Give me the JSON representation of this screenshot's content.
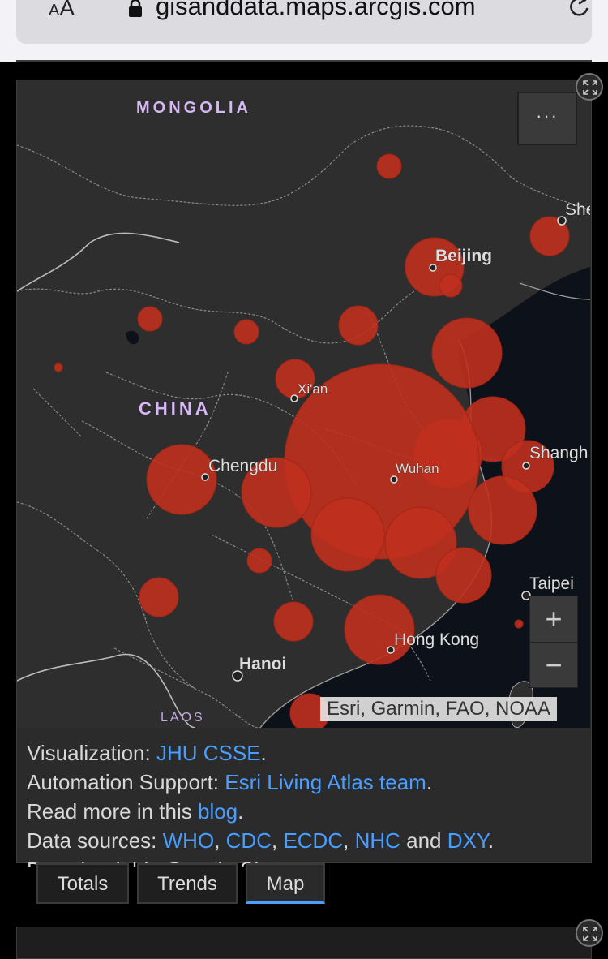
{
  "browser": {
    "aa_label": "AA",
    "url": "gisanddata.maps.arcgis.com"
  },
  "map": {
    "country_labels": [
      "MONGOLIA",
      "CHINA",
      "LAOS"
    ],
    "city_labels": [
      "Beijing",
      "Xi'an",
      "Chengdu",
      "Wuhan",
      "Shangh",
      "Taipei",
      "Hong Kong",
      "Hanoi",
      "She"
    ],
    "more_label": "···",
    "zoom_in": "+",
    "zoom_out": "−",
    "attribution": "Esri, Garmin, FAO, NOAA",
    "bubble_color": "#c0301e",
    "land_color": "#2e2e2e",
    "water_color": "#0d1119"
  },
  "info": {
    "viz_prefix": "Visualization: ",
    "viz_link": "JHU CSSE",
    "viz_suffix": ".",
    "auto_prefix": "Automation Support: ",
    "auto_link": "Esri Living Atlas team",
    "auto_suffix": ".",
    "read_prefix": "Read more in this ",
    "read_link": "blog",
    "read_suffix": ".",
    "sources_prefix": "Data sources: ",
    "src_who": "WHO",
    "src_cdc": "CDC",
    "src_ecdc": "ECDC",
    "src_nhc": "NHC",
    "src_and": " and ",
    "src_dxy": "DXY",
    "src_end": ".",
    "cut_line": "Downloadable Google Sheets"
  },
  "tabs": [
    {
      "label": "Totals"
    },
    {
      "label": "Trends"
    },
    {
      "label": "Map"
    }
  ]
}
